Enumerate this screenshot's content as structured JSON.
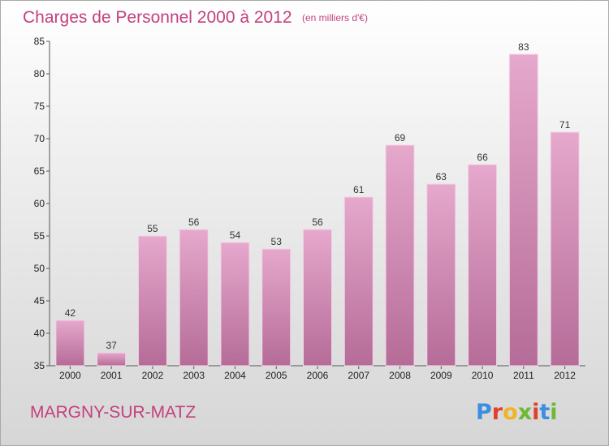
{
  "title": "Charges de Personnel 2000 à 2012",
  "subtitle": "(en milliers d'€)",
  "city": "MARGNY-SUR-MATZ",
  "brand": {
    "letters": [
      "P",
      "r",
      "o",
      "x",
      "i",
      "t",
      "i"
    ],
    "colors": [
      "#3b8ee0",
      "#e0402c",
      "#f2b324",
      "#6fb833",
      "#e0402c",
      "#3b8ee0",
      "#6fb833"
    ]
  },
  "colors": {
    "title": "#c4407f",
    "bar_top": "#e6a8cc",
    "bar_bottom": "#b56c98"
  },
  "chart_data": {
    "type": "bar",
    "title": "Charges de Personnel 2000 à 2012",
    "subtitle": "(en milliers d'€)",
    "xlabel": "",
    "ylabel": "",
    "categories": [
      "2000",
      "2001",
      "2002",
      "2003",
      "2004",
      "2005",
      "2006",
      "2007",
      "2008",
      "2009",
      "2010",
      "2011",
      "2012"
    ],
    "values": [
      42,
      37,
      55,
      56,
      54,
      53,
      56,
      61,
      69,
      63,
      66,
      83,
      71
    ],
    "ylim": [
      35,
      85
    ],
    "yticks": [
      35,
      40,
      45,
      50,
      55,
      60,
      65,
      70,
      75,
      80,
      85
    ],
    "grid": false,
    "legend": "none"
  }
}
